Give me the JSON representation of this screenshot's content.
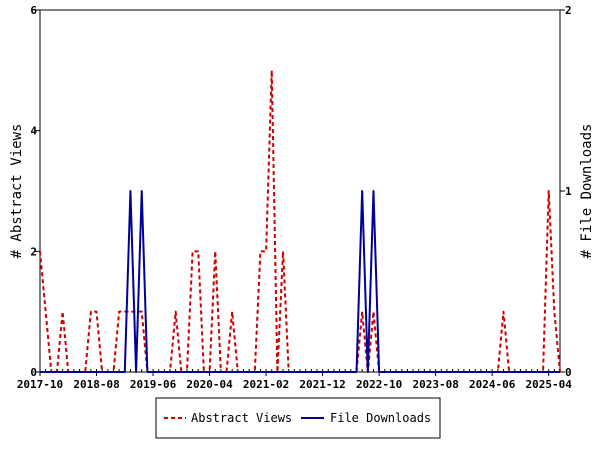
{
  "chart_data": {
    "type": "line",
    "x_tick_labels": [
      "2017-10",
      "2018-08",
      "2019-06",
      "2020-04",
      "2021-02",
      "2021-12",
      "2022-10",
      "2023-08",
      "2024-06",
      "2025-04"
    ],
    "y_left_ticks": [
      "0",
      "2",
      "4",
      "6"
    ],
    "y_right_ticks": [
      "0",
      "1",
      "2"
    ],
    "ylabel_left": "# Abstract Views",
    "ylabel_right": "# File Downloads",
    "ylim_left": [
      0,
      6
    ],
    "ylim_right": [
      0,
      2
    ],
    "legend_position": "bottom",
    "series": [
      {
        "name": "Abstract Views",
        "axis": "left",
        "color": "#cc0000",
        "style": "dashed",
        "points": [
          [
            "2017-10",
            2
          ],
          [
            "2017-11",
            1
          ],
          [
            "2017-12",
            0
          ],
          [
            "2018-01",
            0
          ],
          [
            "2018-02",
            1
          ],
          [
            "2018-03",
            0
          ],
          [
            "2018-04",
            0
          ],
          [
            "2018-05",
            0
          ],
          [
            "2018-06",
            0
          ],
          [
            "2018-07",
            1
          ],
          [
            "2018-08",
            1
          ],
          [
            "2018-09",
            0
          ],
          [
            "2018-10",
            0
          ],
          [
            "2018-11",
            0
          ],
          [
            "2018-12",
            1
          ],
          [
            "2019-01",
            1
          ],
          [
            "2019-02",
            1
          ],
          [
            "2019-03",
            1
          ],
          [
            "2019-04",
            1
          ],
          [
            "2019-05",
            0
          ],
          [
            "2019-06",
            0
          ],
          [
            "2019-07",
            0
          ],
          [
            "2019-08",
            0
          ],
          [
            "2019-09",
            0
          ],
          [
            "2019-10",
            1
          ],
          [
            "2019-11",
            0
          ],
          [
            "2019-12",
            0
          ],
          [
            "2020-01",
            2
          ],
          [
            "2020-02",
            2
          ],
          [
            "2020-03",
            0
          ],
          [
            "2020-04",
            0
          ],
          [
            "2020-05",
            2
          ],
          [
            "2020-06",
            0
          ],
          [
            "2020-07",
            0
          ],
          [
            "2020-08",
            1
          ],
          [
            "2020-09",
            0
          ],
          [
            "2020-10",
            0
          ],
          [
            "2020-11",
            0
          ],
          [
            "2020-12",
            0
          ],
          [
            "2021-01",
            2
          ],
          [
            "2021-02",
            2
          ],
          [
            "2021-03",
            5
          ],
          [
            "2021-04",
            0
          ],
          [
            "2021-05",
            2
          ],
          [
            "2021-06",
            0
          ],
          [
            "2021-07",
            0
          ],
          [
            "2021-08",
            0
          ],
          [
            "2021-09",
            0
          ],
          [
            "2021-10",
            0
          ],
          [
            "2021-11",
            0
          ],
          [
            "2021-12",
            0
          ],
          [
            "2022-01",
            0
          ],
          [
            "2022-02",
            0
          ],
          [
            "2022-03",
            0
          ],
          [
            "2022-04",
            0
          ],
          [
            "2022-05",
            0
          ],
          [
            "2022-06",
            0
          ],
          [
            "2022-07",
            1
          ],
          [
            "2022-08",
            0
          ],
          [
            "2022-09",
            1
          ],
          [
            "2022-10",
            0
          ],
          [
            "2022-11",
            0
          ],
          [
            "2022-12",
            0
          ],
          [
            "2023-01",
            0
          ],
          [
            "2023-02",
            0
          ],
          [
            "2023-03",
            0
          ],
          [
            "2023-04",
            0
          ],
          [
            "2023-05",
            0
          ],
          [
            "2023-06",
            0
          ],
          [
            "2023-07",
            0
          ],
          [
            "2023-08",
            0
          ],
          [
            "2023-09",
            0
          ],
          [
            "2023-10",
            0
          ],
          [
            "2023-11",
            0
          ],
          [
            "2023-12",
            0
          ],
          [
            "2024-01",
            0
          ],
          [
            "2024-02",
            0
          ],
          [
            "2024-03",
            0
          ],
          [
            "2024-04",
            0
          ],
          [
            "2024-05",
            0
          ],
          [
            "2024-06",
            0
          ],
          [
            "2024-07",
            0
          ],
          [
            "2024-08",
            1
          ],
          [
            "2024-09",
            0
          ],
          [
            "2024-10",
            0
          ],
          [
            "2024-11",
            0
          ],
          [
            "2024-12",
            0
          ],
          [
            "2025-01",
            0
          ],
          [
            "2025-02",
            0
          ],
          [
            "2025-03",
            0
          ],
          [
            "2025-04",
            3
          ],
          [
            "2025-05",
            1
          ],
          [
            "2025-06",
            0
          ]
        ]
      },
      {
        "name": "File Downloads",
        "axis": "right",
        "color": "#000099",
        "style": "solid",
        "points": [
          [
            "2017-10",
            0
          ],
          [
            "2017-11",
            0
          ],
          [
            "2017-12",
            0
          ],
          [
            "2018-01",
            0
          ],
          [
            "2018-02",
            0
          ],
          [
            "2018-03",
            0
          ],
          [
            "2018-04",
            0
          ],
          [
            "2018-05",
            0
          ],
          [
            "2018-06",
            0
          ],
          [
            "2018-07",
            0
          ],
          [
            "2018-08",
            0
          ],
          [
            "2018-09",
            0
          ],
          [
            "2018-10",
            0
          ],
          [
            "2018-11",
            0
          ],
          [
            "2018-12",
            0
          ],
          [
            "2019-01",
            0
          ],
          [
            "2019-02",
            1
          ],
          [
            "2019-03",
            0
          ],
          [
            "2019-04",
            1
          ],
          [
            "2019-05",
            0
          ],
          [
            "2019-06",
            0
          ],
          [
            "2019-07",
            0
          ],
          [
            "2019-08",
            0
          ],
          [
            "2019-09",
            0
          ],
          [
            "2019-10",
            0
          ],
          [
            "2019-11",
            0
          ],
          [
            "2019-12",
            0
          ],
          [
            "2020-01",
            0
          ],
          [
            "2020-02",
            0
          ],
          [
            "2020-03",
            0
          ],
          [
            "2020-04",
            0
          ],
          [
            "2020-05",
            0
          ],
          [
            "2020-06",
            0
          ],
          [
            "2020-07",
            0
          ],
          [
            "2020-08",
            0
          ],
          [
            "2020-09",
            0
          ],
          [
            "2020-10",
            0
          ],
          [
            "2020-11",
            0
          ],
          [
            "2020-12",
            0
          ],
          [
            "2021-01",
            0
          ],
          [
            "2021-02",
            0
          ],
          [
            "2021-03",
            0
          ],
          [
            "2021-04",
            0
          ],
          [
            "2021-05",
            0
          ],
          [
            "2021-06",
            0
          ],
          [
            "2021-07",
            0
          ],
          [
            "2021-08",
            0
          ],
          [
            "2021-09",
            0
          ],
          [
            "2021-10",
            0
          ],
          [
            "2021-11",
            0
          ],
          [
            "2021-12",
            0
          ],
          [
            "2022-01",
            0
          ],
          [
            "2022-02",
            0
          ],
          [
            "2022-03",
            0
          ],
          [
            "2022-04",
            0
          ],
          [
            "2022-05",
            0
          ],
          [
            "2022-06",
            0
          ],
          [
            "2022-07",
            1
          ],
          [
            "2022-08",
            0
          ],
          [
            "2022-09",
            1
          ],
          [
            "2022-10",
            0
          ],
          [
            "2022-11",
            0
          ],
          [
            "2022-12",
            0
          ],
          [
            "2023-01",
            0
          ],
          [
            "2023-02",
            0
          ],
          [
            "2023-03",
            0
          ],
          [
            "2023-04",
            0
          ],
          [
            "2023-05",
            0
          ],
          [
            "2023-06",
            0
          ],
          [
            "2023-07",
            0
          ],
          [
            "2023-08",
            0
          ],
          [
            "2023-09",
            0
          ],
          [
            "2023-10",
            0
          ],
          [
            "2023-11",
            0
          ],
          [
            "2023-12",
            0
          ],
          [
            "2024-01",
            0
          ],
          [
            "2024-02",
            0
          ],
          [
            "2024-03",
            0
          ],
          [
            "2024-04",
            0
          ],
          [
            "2024-05",
            0
          ],
          [
            "2024-06",
            0
          ],
          [
            "2024-07",
            0
          ],
          [
            "2024-08",
            0
          ],
          [
            "2024-09",
            0
          ],
          [
            "2024-10",
            0
          ],
          [
            "2024-11",
            0
          ],
          [
            "2024-12",
            0
          ],
          [
            "2025-01",
            0
          ],
          [
            "2025-02",
            0
          ],
          [
            "2025-03",
            0
          ],
          [
            "2025-04",
            0
          ],
          [
            "2025-05",
            0
          ],
          [
            "2025-06",
            0
          ]
        ]
      }
    ]
  }
}
